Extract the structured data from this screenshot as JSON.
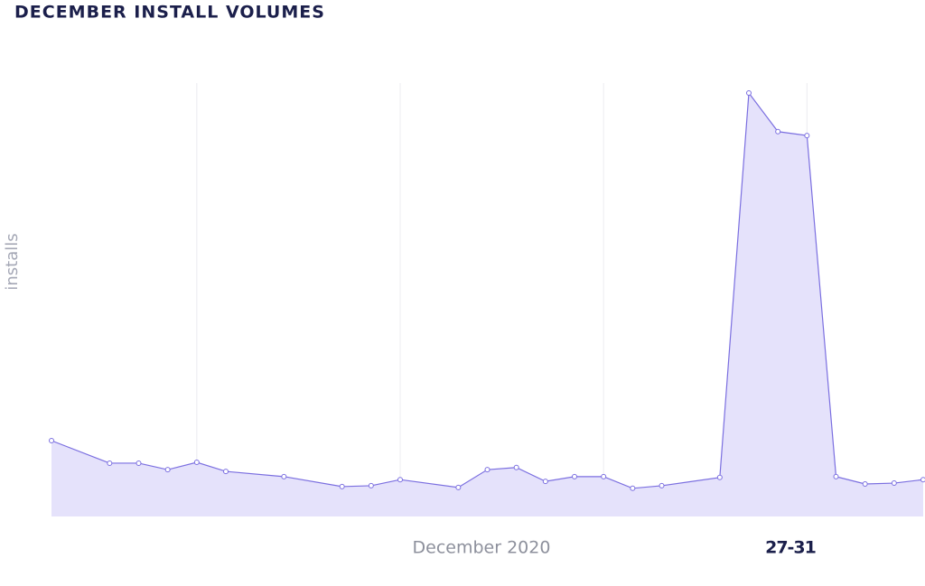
{
  "chart_data": {
    "type": "area",
    "title": "DECEMBER INSTALL VOLUMES",
    "y_label": "installs",
    "x_label": "December 2020",
    "highlight_label": "27-31",
    "x": [
      1,
      3,
      4,
      5,
      6,
      7,
      9,
      11,
      12,
      13,
      15,
      16,
      17,
      18,
      19,
      20,
      21,
      22,
      24,
      25,
      26,
      27,
      28,
      29,
      30,
      31
    ],
    "series": [
      {
        "name": "installs",
        "color": "#7b6fe0",
        "fill": "#e5e2fb",
        "values": [
          17.5,
          12.3,
          12.3,
          10.8,
          12.5,
          10.4,
          9.2,
          6.9,
          7.1,
          8.5,
          6.7,
          10.8,
          11.3,
          8.1,
          9.2,
          9.2,
          6.5,
          7.1,
          9.0,
          97.7,
          88.8,
          87.9,
          9.2,
          7.5,
          7.7,
          8.5
        ]
      }
    ],
    "xlim": [
      1,
      31
    ],
    "ylim": [
      0,
      100
    ],
    "x_gridlines": [
      6,
      13,
      20,
      27
    ]
  }
}
